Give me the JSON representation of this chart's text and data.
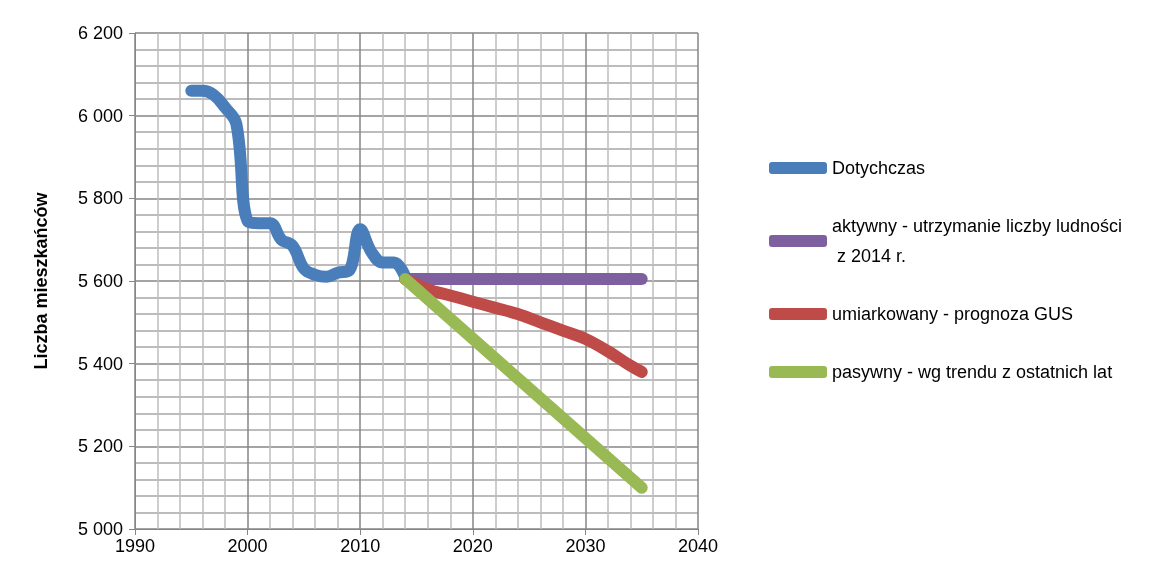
{
  "chart_data": {
    "type": "line",
    "ylabel": "Liczba mieszkańców",
    "xlim": [
      1990,
      2040
    ],
    "xticks": [
      1990,
      2000,
      2010,
      2020,
      2030,
      2040
    ],
    "ylim": [
      5000,
      6200
    ],
    "yticks": [
      {
        "value": 5000,
        "label": "5 000"
      },
      {
        "value": 5200,
        "label": "5 200"
      },
      {
        "value": 5400,
        "label": "5 400"
      },
      {
        "value": 5600,
        "label": "5 600"
      },
      {
        "value": 5800,
        "label": "5 800"
      },
      {
        "value": 6000,
        "label": "6 000"
      },
      {
        "value": 6200,
        "label": "6 200"
      }
    ],
    "grid": true,
    "legend": "right",
    "marker": "none",
    "line_style": "solid",
    "series": [
      {
        "name": "Dotychczas",
        "color": "#4a7ebb",
        "x": [
          1995,
          1996,
          1997,
          1998,
          1999,
          2000,
          2001,
          2002,
          2003,
          2004,
          2005,
          2006,
          2007,
          2008,
          2009,
          2010,
          2011,
          2012,
          2013,
          2014
        ],
        "values": [
          6060,
          6060,
          6050,
          6020,
          5980,
          5745,
          5740,
          5740,
          5700,
          5685,
          5630,
          5615,
          5610,
          5620,
          5625,
          5725,
          5670,
          5645,
          5645,
          5610
        ]
      },
      {
        "name": "aktywny - utrzymanie liczby ludności z 2014 r.",
        "color": "#7e5fa0",
        "x": [
          2014,
          2035
        ],
        "values": [
          5605,
          5605
        ]
      },
      {
        "name": "umiarkowany - prognoza GUS",
        "color": "#be4b48",
        "x": [
          2014,
          2016,
          2018,
          2020,
          2022,
          2024,
          2026,
          2028,
          2030,
          2032,
          2034,
          2035
        ],
        "values": [
          5605,
          5580,
          5565,
          5550,
          5535,
          5520,
          5500,
          5480,
          5460,
          5430,
          5395,
          5380
        ]
      },
      {
        "name": "pasywny - wg trendu z ostatnich lat",
        "color": "#98b954",
        "x": [
          2014,
          2035
        ],
        "values": [
          5605,
          5100
        ]
      }
    ]
  }
}
